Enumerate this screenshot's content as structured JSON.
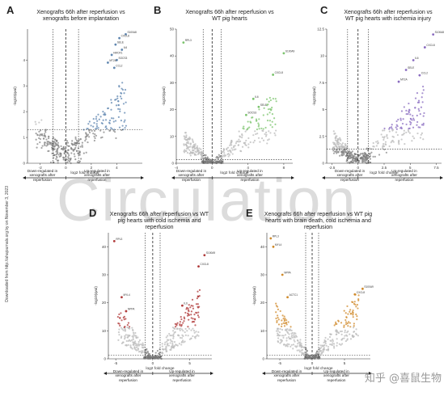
{
  "watermark": "Circulation",
  "sidebar_text": "Downloaded from http://ahajournals.org by on November 3, 2023",
  "corner_watermark": "知乎 @喜鼠生物",
  "chart_data": [
    {
      "id": "A",
      "type": "scatter",
      "letter": "A",
      "title": "Xenografts 66h after reperfusion vs xenografts before implantation",
      "xlabel": "log2 fold change",
      "ylabel": "-log10(qval)",
      "xlim": [
        -3,
        6
      ],
      "ylim": [
        0,
        5.2
      ],
      "xticks": [
        -2,
        0,
        2,
        4
      ],
      "yticks": [
        0,
        1,
        2,
        3,
        4
      ],
      "vlines": [
        -1,
        0,
        1
      ],
      "hline": 1.3,
      "hi_color": "#5f86b0",
      "down_label": "Down-regulated in xenografts after reperfusion",
      "up_label": "Up-regulated in xenografts after reperfusion",
      "labeled_points": [
        {
          "x": 4.7,
          "y": 5.0,
          "label": "S100A8"
        },
        {
          "x": 4.2,
          "y": 4.85,
          "label": "CXCL8"
        },
        {
          "x": 3.9,
          "y": 4.6,
          "label": "SELE"
        },
        {
          "x": 4.4,
          "y": 4.4,
          "label": "IL6"
        },
        {
          "x": 3.6,
          "y": 4.2,
          "label": "HMOX1"
        },
        {
          "x": 4.0,
          "y": 4.0,
          "label": "SOCS3"
        },
        {
          "x": 3.3,
          "y": 3.9,
          "label": "MT2A"
        },
        {
          "x": 3.8,
          "y": 3.7,
          "label": "CCL2"
        }
      ],
      "scatter_seed": 11,
      "n_points": 260
    },
    {
      "id": "B",
      "type": "scatter",
      "letter": "B",
      "title": "Xenografts 66h after reperfusion vs WT pig hearts",
      "xlabel": "log2 fold change",
      "ylabel": "-log10(qval)",
      "xlim": [
        -4,
        9
      ],
      "ylim": [
        0,
        50
      ],
      "xticks": [
        -4,
        0,
        4,
        8
      ],
      "yticks": [
        0,
        10,
        20,
        30,
        40,
        50
      ],
      "vlines": [
        -1,
        0,
        1
      ],
      "hline": 1.3,
      "hi_color": "#7cc46e",
      "down_label": "Down-regulated in xenografts after reperfusion",
      "up_label": "Up-regulated in xenografts after reperfusion",
      "labeled_points": [
        {
          "x": -3.2,
          "y": 45,
          "label": "RPL3"
        },
        {
          "x": 8.0,
          "y": 41,
          "label": "S100A9"
        },
        {
          "x": 6.8,
          "y": 33,
          "label": "CXCL8"
        },
        {
          "x": 4.6,
          "y": 24,
          "label": "IL6"
        },
        {
          "x": 5.2,
          "y": 21,
          "label": "SELE"
        },
        {
          "x": 3.8,
          "y": 18,
          "label": "SOCS3"
        }
      ],
      "scatter_seed": 23,
      "n_points": 300
    },
    {
      "id": "C",
      "type": "scatter",
      "letter": "C",
      "title": "Xenografts 66h after reperfusion vs WT pig hearts with ischemia injury",
      "xlabel": "log2 fold change",
      "ylabel": "-log10(qval)",
      "xlim": [
        -3,
        8
      ],
      "ylim": [
        0,
        12.5
      ],
      "xticks": [
        -2.5,
        0,
        2.5,
        5,
        7.5
      ],
      "yticks": [
        0,
        2.5,
        5,
        7.5,
        10,
        12.5
      ],
      "vlines": [
        -1,
        0,
        1
      ],
      "hline": 1.3,
      "hi_color": "#8a6cc0",
      "down_label": "Down-regulated in xenografts after reperfusion",
      "up_label": "Up-regulated in xenografts after reperfusion",
      "labeled_points": [
        {
          "x": 7.2,
          "y": 12.0,
          "label": "S100A8"
        },
        {
          "x": 6.4,
          "y": 10.8,
          "label": "CXCL8"
        },
        {
          "x": 5.3,
          "y": 9.6,
          "label": "IL6"
        },
        {
          "x": 4.6,
          "y": 8.7,
          "label": "SELE"
        },
        {
          "x": 5.9,
          "y": 8.2,
          "label": "CCL2"
        },
        {
          "x": 3.9,
          "y": 7.6,
          "label": "MT2A"
        }
      ],
      "scatter_seed": 37,
      "n_points": 320
    },
    {
      "id": "D",
      "type": "scatter",
      "letter": "D",
      "title": "Xenografts 66h after reperfusion vs WT pig hearts with cold ischemia and reperfusion",
      "xlabel": "log2 fold change",
      "ylabel": "-log10(qval)",
      "xlim": [
        -6,
        8
      ],
      "ylim": [
        0,
        45
      ],
      "xticks": [
        -5,
        0,
        5
      ],
      "yticks": [
        0,
        10,
        20,
        30,
        40
      ],
      "vlines": [
        -1,
        0,
        1
      ],
      "hline": 1.3,
      "hi_color": "#b03a3a",
      "down_label": "Down-regulated in xenografts after reperfusion",
      "up_label": "Up-regulated in xenografts after reperfusion",
      "labeled_points": [
        {
          "x": -5.2,
          "y": 42,
          "label": "RPL3"
        },
        {
          "x": 7.0,
          "y": 37,
          "label": "S100A9"
        },
        {
          "x": 6.2,
          "y": 33,
          "label": "CXCL8"
        },
        {
          "x": -4.2,
          "y": 22,
          "label": "MYL4"
        },
        {
          "x": 4.0,
          "y": 19,
          "label": "IL6"
        },
        {
          "x": -3.6,
          "y": 17,
          "label": "NPPA"
        }
      ],
      "scatter_seed": 51,
      "n_points": 320
    },
    {
      "id": "E",
      "type": "scatter",
      "letter": "E",
      "title": "Xenografts 66h after reperfusion vs WT pig hearts with brain death, cold ischemia and reperfusion",
      "xlabel": "log2 fold change",
      "ylabel": "-log10(qval)",
      "xlim": [
        -7,
        9
      ],
      "ylim": [
        0,
        45
      ],
      "xticks": [
        -5,
        0,
        5
      ],
      "yticks": [
        0,
        10,
        20,
        30,
        40
      ],
      "vlines": [
        -1,
        0,
        1
      ],
      "hline": 1.3,
      "hi_color": "#d08a2a",
      "down_label": "Down-regulated in xenografts after reperfusion",
      "up_label": "Up-regulated in xenografts after reperfusion",
      "labeled_points": [
        {
          "x": -6.4,
          "y": 43,
          "label": "RPL3"
        },
        {
          "x": -6.0,
          "y": 40,
          "label": "MYL4"
        },
        {
          "x": 7.8,
          "y": 25,
          "label": "S100A9"
        },
        {
          "x": 6.6,
          "y": 23,
          "label": "CXCL8"
        },
        {
          "x": -4.6,
          "y": 30,
          "label": "NPPA"
        },
        {
          "x": -3.8,
          "y": 22,
          "label": "ACTC1"
        }
      ],
      "scatter_seed": 67,
      "n_points": 320
    }
  ]
}
